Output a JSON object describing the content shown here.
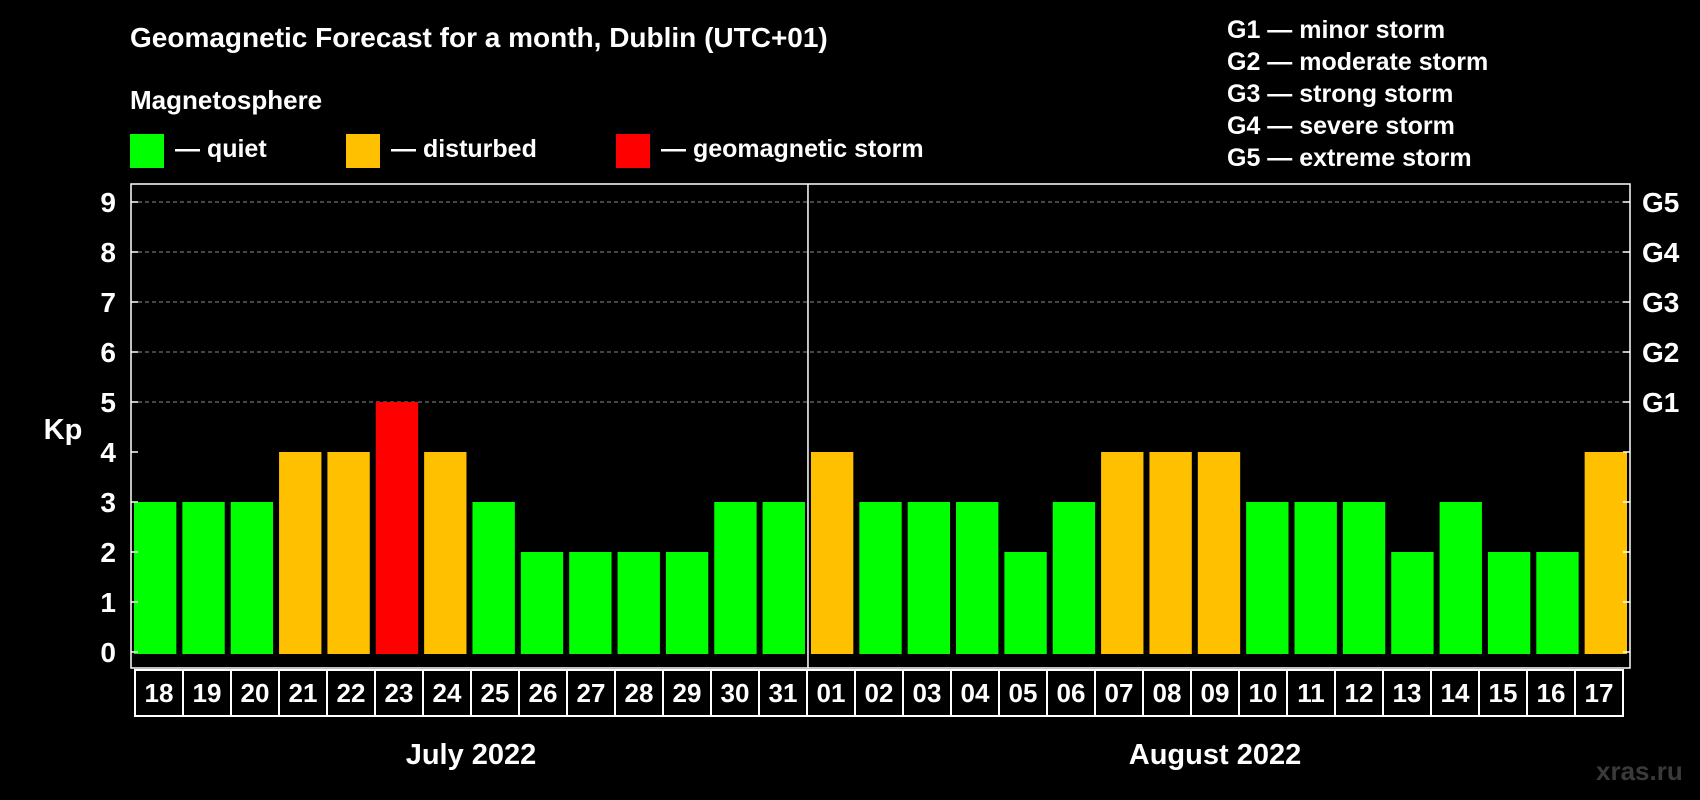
{
  "chart_data": {
    "type": "bar",
    "title": "Geomagnetic Forecast for a month, Dublin (UTC+01)",
    "subtitle": "Magnetosphere",
    "ylabel": "Kp",
    "ylim": [
      0,
      9
    ],
    "yticks": [
      "0",
      "1",
      "2",
      "3",
      "4",
      "5",
      "6",
      "7",
      "8",
      "9"
    ],
    "right_axis_labels": [
      {
        "kp": 5,
        "label": "G1"
      },
      {
        "kp": 6,
        "label": "G2"
      },
      {
        "kp": 7,
        "label": "G3"
      },
      {
        "kp": 8,
        "label": "G4"
      },
      {
        "kp": 9,
        "label": "G5"
      }
    ],
    "categories": [
      "18",
      "19",
      "20",
      "21",
      "22",
      "23",
      "24",
      "25",
      "26",
      "27",
      "28",
      "29",
      "30",
      "31",
      "01",
      "02",
      "03",
      "04",
      "05",
      "06",
      "07",
      "08",
      "09",
      "10",
      "11",
      "12",
      "13",
      "14",
      "15",
      "16",
      "17"
    ],
    "values": [
      3,
      3,
      3,
      4,
      4,
      5,
      4,
      3,
      2,
      2,
      2,
      2,
      3,
      3,
      4,
      3,
      3,
      3,
      2,
      3,
      4,
      4,
      4,
      3,
      3,
      3,
      2,
      3,
      2,
      2,
      4
    ],
    "months": [
      {
        "label": "July 2022",
        "start_index": 0,
        "count": 14
      },
      {
        "label": "August 2022",
        "start_index": 14,
        "count": 17
      }
    ],
    "grid": true
  },
  "legend": {
    "items": [
      {
        "label": "— quiet",
        "color": "#00ff00",
        "max_kp": 3
      },
      {
        "label": "— disturbed",
        "color": "#ffc000",
        "max_kp": 4
      },
      {
        "label": "— geomagnetic storm",
        "color": "#ff0000",
        "max_kp": 9
      }
    ]
  },
  "storm_scale": [
    "G1 — minor storm",
    "G2 — moderate storm",
    "G3 — strong storm",
    "G4 — severe storm",
    "G5 — extreme storm"
  ],
  "watermark": "xras.ru"
}
